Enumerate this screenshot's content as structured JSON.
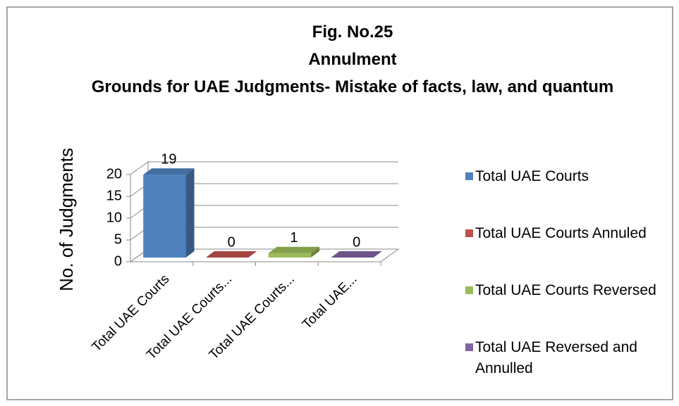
{
  "chart_data": {
    "type": "bar3d",
    "title": [
      "Fig. No.25",
      "Annulment",
      "Grounds for UAE Judgments- Mistake of facts, law, and quantum"
    ],
    "y_label": "No. of Judgments",
    "categories": [
      "Total UAE Courts",
      "Total UAE Courts...",
      "Total UAE Courts...",
      "Total UAE..."
    ],
    "series": [
      {
        "name": "Total UAE Courts",
        "color": "#4f81bd",
        "values": [
          19,
          null,
          null,
          null
        ]
      },
      {
        "name": "Total UAE Courts Annuled",
        "color": "#c0504d",
        "values": [
          null,
          0,
          null,
          null
        ]
      },
      {
        "name": "Total UAE Courts Reversed",
        "color": "#9bbb59",
        "values": [
          null,
          null,
          1,
          null
        ]
      },
      {
        "name": "Total UAE Reversed and Annulled",
        "color": "#8064a2",
        "values": [
          null,
          null,
          null,
          0
        ]
      }
    ],
    "ylim": [
      0,
      20
    ],
    "yticks": [
      0,
      5,
      10,
      15,
      20
    ],
    "grid": true,
    "legend": "right"
  }
}
